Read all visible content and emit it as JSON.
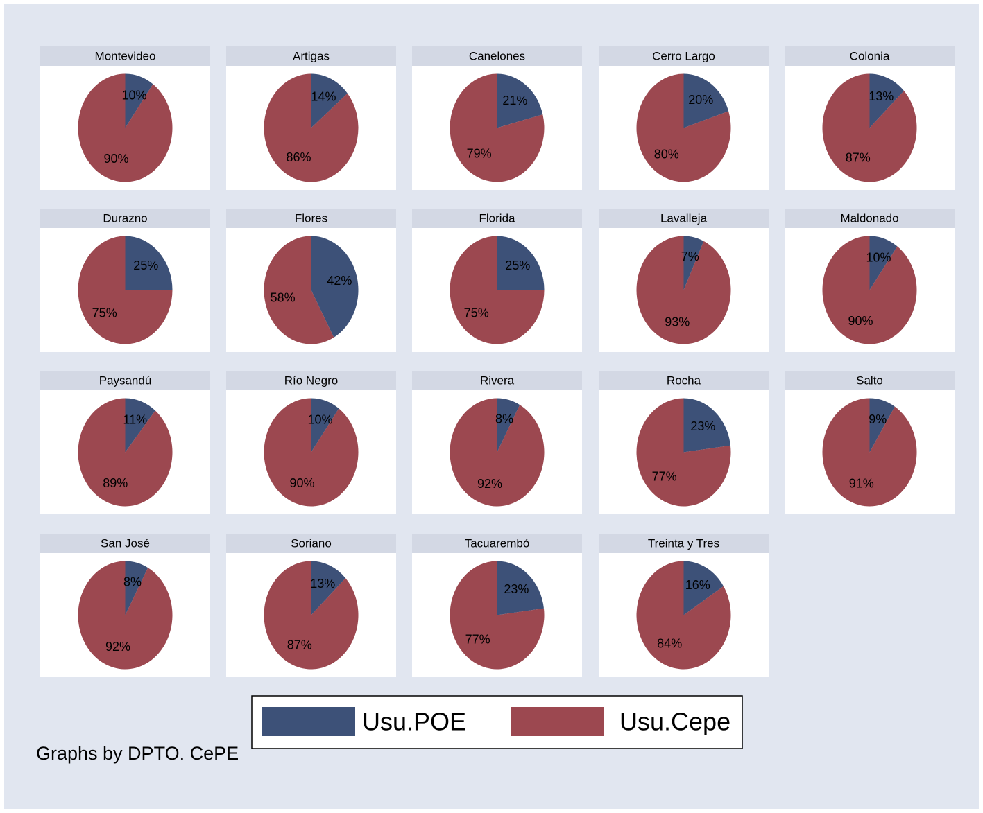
{
  "colors": [
    "#3d5178",
    "#9c4850"
  ],
  "legend": [
    "Usu.POE",
    "Usu.Cepe"
  ],
  "note": "Graphs by DPTO. CePE",
  "chart_data": [
    {
      "type": "pie",
      "title": "Montevideo",
      "values": [
        10,
        90
      ],
      "value_labels": [
        "10%",
        "90%"
      ]
    },
    {
      "type": "pie",
      "title": "Artigas",
      "values": [
        14,
        86
      ],
      "value_labels": [
        "14%",
        "86%"
      ]
    },
    {
      "type": "pie",
      "title": "Canelones",
      "values": [
        21,
        79
      ],
      "value_labels": [
        "21%",
        "79%"
      ]
    },
    {
      "type": "pie",
      "title": "Cerro Largo",
      "values": [
        20,
        80
      ],
      "value_labels": [
        "20%",
        "80%"
      ]
    },
    {
      "type": "pie",
      "title": "Colonia",
      "values": [
        13,
        87
      ],
      "value_labels": [
        "13%",
        "87%"
      ]
    },
    {
      "type": "pie",
      "title": "Durazno",
      "values": [
        25,
        75
      ],
      "value_labels": [
        "25%",
        "75%"
      ]
    },
    {
      "type": "pie",
      "title": "Flores",
      "values": [
        42,
        58
      ],
      "value_labels": [
        "42%",
        "58%"
      ]
    },
    {
      "type": "pie",
      "title": "Florida",
      "values": [
        25,
        75
      ],
      "value_labels": [
        "25%",
        "75%"
      ]
    },
    {
      "type": "pie",
      "title": "Lavalleja",
      "values": [
        7,
        93
      ],
      "value_labels": [
        "7%",
        "93%"
      ]
    },
    {
      "type": "pie",
      "title": "Maldonado",
      "values": [
        10,
        90
      ],
      "value_labels": [
        "10%",
        "90%"
      ]
    },
    {
      "type": "pie",
      "title": "Paysandú",
      "values": [
        11,
        89
      ],
      "value_labels": [
        "11%",
        "89%"
      ]
    },
    {
      "type": "pie",
      "title": "Río Negro",
      "values": [
        10,
        90
      ],
      "value_labels": [
        "10%",
        "90%"
      ]
    },
    {
      "type": "pie",
      "title": "Rivera",
      "values": [
        8,
        92
      ],
      "value_labels": [
        "8%",
        "92%"
      ]
    },
    {
      "type": "pie",
      "title": "Rocha",
      "values": [
        23,
        77
      ],
      "value_labels": [
        "23%",
        "77%"
      ]
    },
    {
      "type": "pie",
      "title": "Salto",
      "values": [
        9,
        91
      ],
      "value_labels": [
        "9%",
        "91%"
      ]
    },
    {
      "type": "pie",
      "title": "San José",
      "values": [
        8,
        92
      ],
      "value_labels": [
        "8%",
        "92%"
      ]
    },
    {
      "type": "pie",
      "title": "Soriano",
      "values": [
        13,
        87
      ],
      "value_labels": [
        "13%",
        "87%"
      ]
    },
    {
      "type": "pie",
      "title": "Tacuarembó",
      "values": [
        23,
        77
      ],
      "value_labels": [
        "23%",
        "77%"
      ]
    },
    {
      "type": "pie",
      "title": "Treinta y Tres",
      "values": [
        16,
        84
      ],
      "value_labels": [
        "16%",
        "84%"
      ]
    }
  ]
}
